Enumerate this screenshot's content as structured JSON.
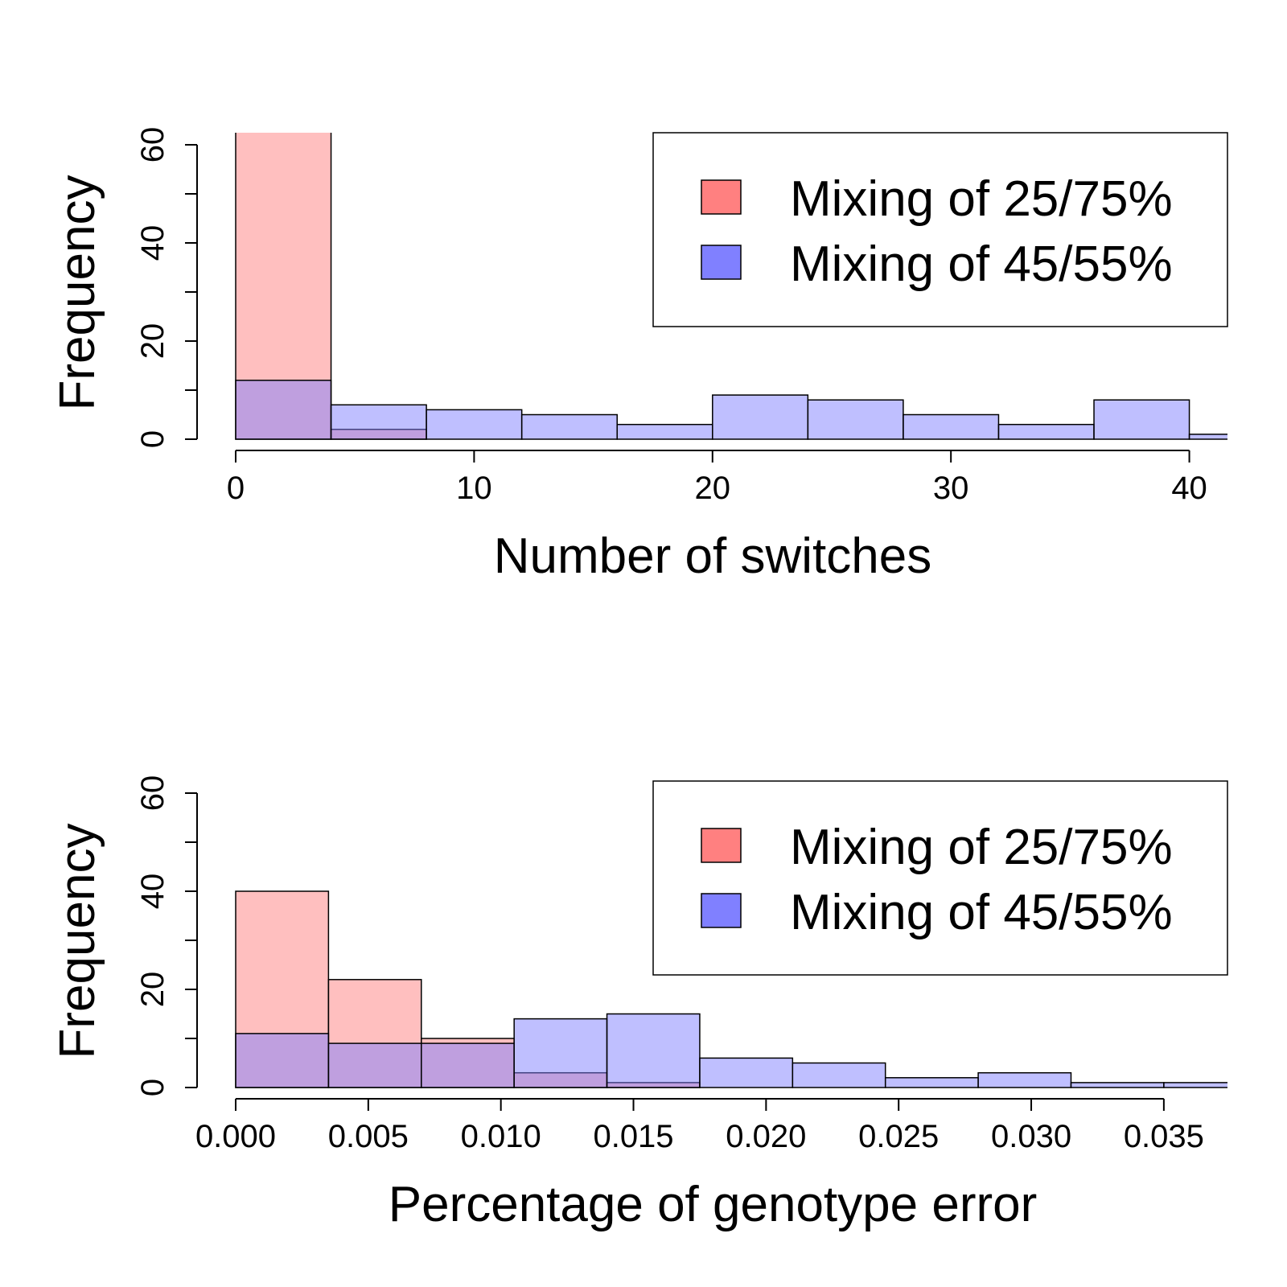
{
  "colors": {
    "series_a": "#ff8080",
    "series_b": "#8080ff",
    "overlap": "#8040c0",
    "stroke": "#000000"
  },
  "chart_data": [
    {
      "type": "bar",
      "subtype": "overlaid-histogram",
      "title": "",
      "xlabel": "Number of switches",
      "ylabel": "Frequency",
      "xlim": [
        0,
        41.6
      ],
      "ylim": [
        0,
        60
      ],
      "xticks": [
        0,
        10,
        20,
        30,
        40
      ],
      "xtick_labels": [
        "0",
        "10",
        "20",
        "30",
        "40"
      ],
      "yticks": [
        0,
        20,
        40,
        60
      ],
      "ytick_labels": [
        "0",
        "20",
        "40",
        "60"
      ],
      "yminor_ticks": [
        10,
        30,
        50
      ],
      "legend_position": "top-right",
      "grid": false,
      "series": [
        {
          "name": "Mixing of 25/75%",
          "color": "#ff8080",
          "bins": [
            [
              0,
              4,
              63
            ],
            [
              4,
              8,
              2
            ]
          ]
        },
        {
          "name": "Mixing of 45/55%",
          "color": "#8080ff",
          "bins": [
            [
              0,
              4,
              12
            ],
            [
              4,
              8,
              7
            ],
            [
              8,
              12,
              6
            ],
            [
              12,
              16,
              5
            ],
            [
              16,
              20,
              3
            ],
            [
              20,
              24,
              9
            ],
            [
              24,
              28,
              8
            ],
            [
              28,
              32,
              5
            ],
            [
              32,
              36,
              3
            ],
            [
              36,
              40,
              8
            ],
            [
              40,
              44,
              1
            ]
          ]
        }
      ]
    },
    {
      "type": "bar",
      "subtype": "overlaid-histogram",
      "title": "",
      "xlabel": "Percentage of genotype error",
      "ylabel": "Frequency",
      "xlim": [
        0,
        0.0374
      ],
      "ylim": [
        0,
        60
      ],
      "xticks": [
        0,
        0.005,
        0.01,
        0.015,
        0.02,
        0.025,
        0.03,
        0.035
      ],
      "xtick_labels": [
        "0.000",
        "0.005",
        "0.010",
        "0.015",
        "0.020",
        "0.025",
        "0.030",
        "0.035"
      ],
      "yticks": [
        0,
        20,
        40,
        60
      ],
      "ytick_labels": [
        "0",
        "20",
        "40",
        "60"
      ],
      "yminor_ticks": [
        10,
        30,
        50
      ],
      "legend_position": "top-right",
      "grid": false,
      "series": [
        {
          "name": "Mixing of 25/75%",
          "color": "#ff8080",
          "bins": [
            [
              0,
              0.0035,
              40
            ],
            [
              0.0035,
              0.007,
              22
            ],
            [
              0.007,
              0.0105,
              10
            ],
            [
              0.0105,
              0.014,
              3
            ],
            [
              0.014,
              0.0175,
              1
            ]
          ]
        },
        {
          "name": "Mixing of 45/55%",
          "color": "#8080ff",
          "bins": [
            [
              0,
              0.0035,
              11
            ],
            [
              0.0035,
              0.007,
              9
            ],
            [
              0.007,
              0.0105,
              9
            ],
            [
              0.0105,
              0.014,
              14
            ],
            [
              0.014,
              0.0175,
              15
            ],
            [
              0.0175,
              0.021,
              6
            ],
            [
              0.021,
              0.0245,
              5
            ],
            [
              0.0245,
              0.028,
              2
            ],
            [
              0.028,
              0.0315,
              3
            ],
            [
              0.0315,
              0.035,
              1
            ],
            [
              0.035,
              0.0385,
              1
            ]
          ]
        }
      ]
    }
  ]
}
